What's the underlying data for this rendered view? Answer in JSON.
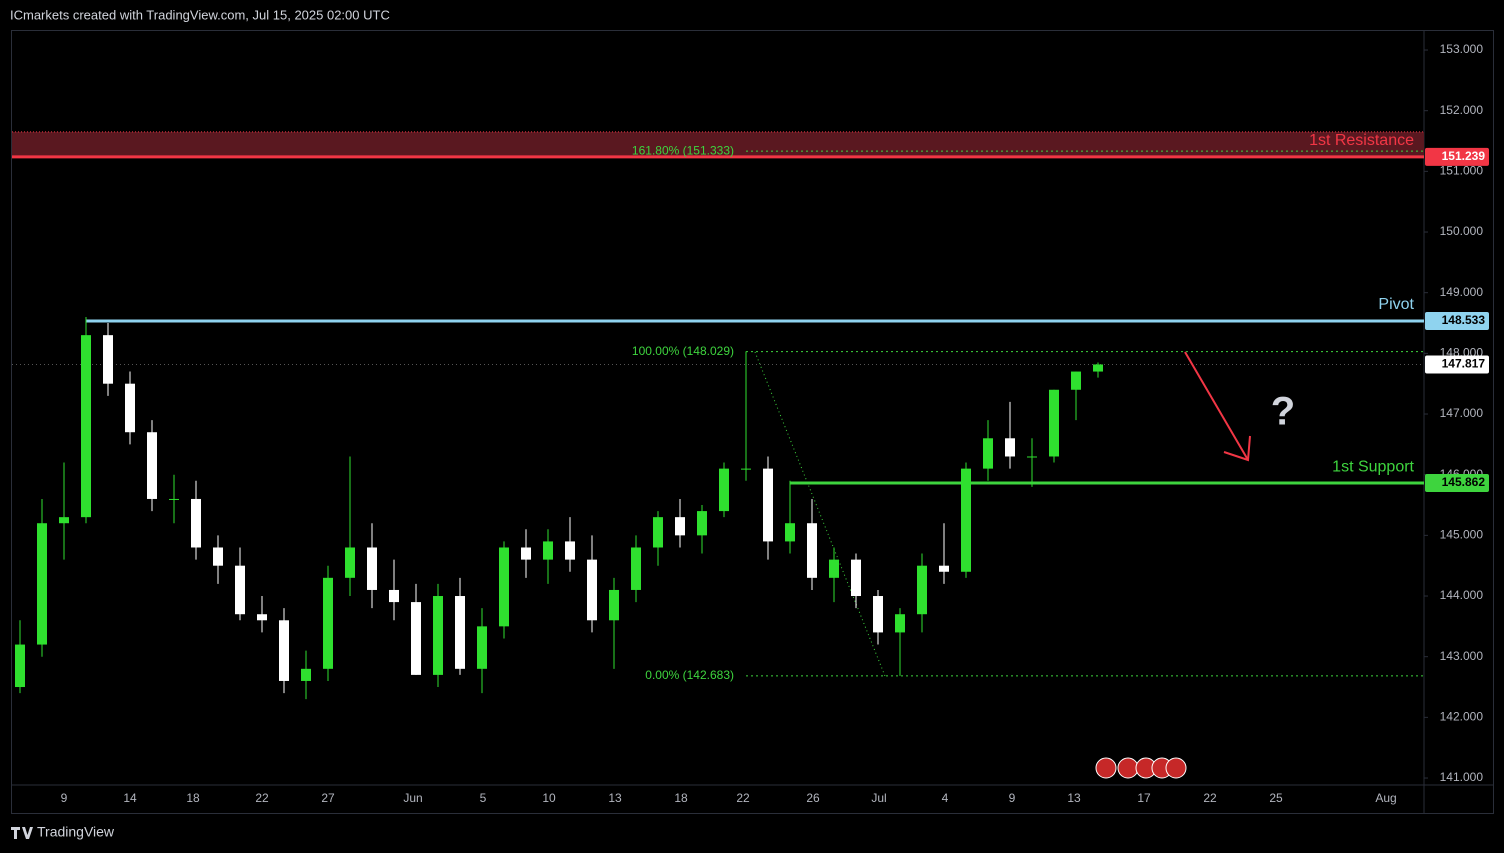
{
  "header": {
    "title": "ICmarkets created with TradingView.com, Jul 15, 2025 02:00 UTC",
    "brand": "TradingView"
  },
  "chart_data": {
    "type": "candlestick",
    "open": [
      142.5,
      143.2,
      145.2,
      145.3,
      148.3,
      147.5,
      146.7,
      145.6,
      145.6,
      144.8,
      144.5,
      143.7,
      143.6,
      142.6,
      142.8,
      144.3,
      144.8,
      144.1,
      143.9,
      142.7,
      144.0,
      142.8,
      143.5,
      144.8,
      144.6,
      144.9,
      144.6,
      143.6,
      144.1,
      144.8,
      145.3,
      145.0,
      145.4,
      146.1,
      146.1,
      144.9,
      145.2,
      144.3,
      144.6,
      144.0,
      143.4,
      143.7,
      144.5,
      144.4,
      146.1,
      146.6,
      146.3,
      146.3,
      147.4,
      147.7
    ],
    "high": [
      143.6,
      145.6,
      146.2,
      148.6,
      148.5,
      147.7,
      146.9,
      146.0,
      145.9,
      145.0,
      144.8,
      144.0,
      143.8,
      143.1,
      144.5,
      146.3,
      145.2,
      144.6,
      144.2,
      144.2,
      144.3,
      143.8,
      144.9,
      145.1,
      145.1,
      145.3,
      145.0,
      144.3,
      145.0,
      145.4,
      145.6,
      145.5,
      146.2,
      148.03,
      146.3,
      145.9,
      145.6,
      144.8,
      144.7,
      144.1,
      143.8,
      144.7,
      145.2,
      146.2,
      146.9,
      147.2,
      146.6,
      147.4,
      147.7,
      147.85
    ],
    "low": [
      142.4,
      143.0,
      144.6,
      145.2,
      147.3,
      146.5,
      145.4,
      145.2,
      144.6,
      144.2,
      143.6,
      143.4,
      142.4,
      142.3,
      142.6,
      144.0,
      143.8,
      143.6,
      142.7,
      142.5,
      142.7,
      142.4,
      143.3,
      144.3,
      144.2,
      144.4,
      143.4,
      142.8,
      143.9,
      144.5,
      144.8,
      144.7,
      145.3,
      145.9,
      144.6,
      144.7,
      144.1,
      143.9,
      143.8,
      143.2,
      142.683,
      143.4,
      144.2,
      144.3,
      145.9,
      146.1,
      145.8,
      146.2,
      146.9,
      147.6
    ],
    "close": [
      143.2,
      145.2,
      145.3,
      148.3,
      147.5,
      146.7,
      145.6,
      145.6,
      144.8,
      144.5,
      143.7,
      143.6,
      142.6,
      142.8,
      144.3,
      144.8,
      144.1,
      143.9,
      142.7,
      144.0,
      142.8,
      143.5,
      144.8,
      144.6,
      144.9,
      144.6,
      143.6,
      144.1,
      144.8,
      145.3,
      145.0,
      145.4,
      146.1,
      146.1,
      144.9,
      145.2,
      144.3,
      144.6,
      144.0,
      143.4,
      143.7,
      144.5,
      144.4,
      146.1,
      146.6,
      146.3,
      146.3,
      147.4,
      147.7,
      147.817
    ],
    "up_color": "#2fe02f",
    "down_color": "#ffffff",
    "ylim": [
      140.885,
      153.33
    ],
    "yticks": [
      {
        "value": 141,
        "label": "141.000"
      },
      {
        "value": 142,
        "label": "142.000"
      },
      {
        "value": 143,
        "label": "143.000"
      },
      {
        "value": 144,
        "label": "144.000"
      },
      {
        "value": 145,
        "label": "145.000"
      },
      {
        "value": 146,
        "label": "146.000"
      },
      {
        "value": 147,
        "label": "147.000"
      },
      {
        "value": 148,
        "label": "148.000"
      },
      {
        "value": 149,
        "label": "149.000"
      },
      {
        "value": 150,
        "label": "150.000"
      },
      {
        "value": 151,
        "label": "151.000"
      },
      {
        "value": 152,
        "label": "152.000"
      },
      {
        "value": 153,
        "label": "153.000"
      }
    ],
    "x_tick_labels": [
      "9",
      "14",
      "18",
      "22",
      "27",
      "Jun",
      "5",
      "10",
      "13",
      "18",
      "22",
      "26",
      "Jul",
      "4",
      "9",
      "13",
      "17",
      "22",
      "25",
      "Aug"
    ],
    "levels": [
      {
        "name": "1st Resistance",
        "value": 151.239,
        "zone_top": 151.65,
        "color": "#f23645"
      },
      {
        "name": "Pivot",
        "value": 148.533,
        "color": "#8fd3ef"
      },
      {
        "name": "1st Support",
        "value": 145.862,
        "color": "#3ed43e"
      }
    ],
    "fibonacci": [
      {
        "value": 151.333,
        "label": "161.80% (151.333)"
      },
      {
        "value": 148.029,
        "label": "100.00% (148.029)"
      },
      {
        "value": 142.683,
        "label": "0.00% (142.683)"
      }
    ],
    "fib_color": "#3ed43e",
    "last_price": 147.817,
    "annotation": "?"
  }
}
